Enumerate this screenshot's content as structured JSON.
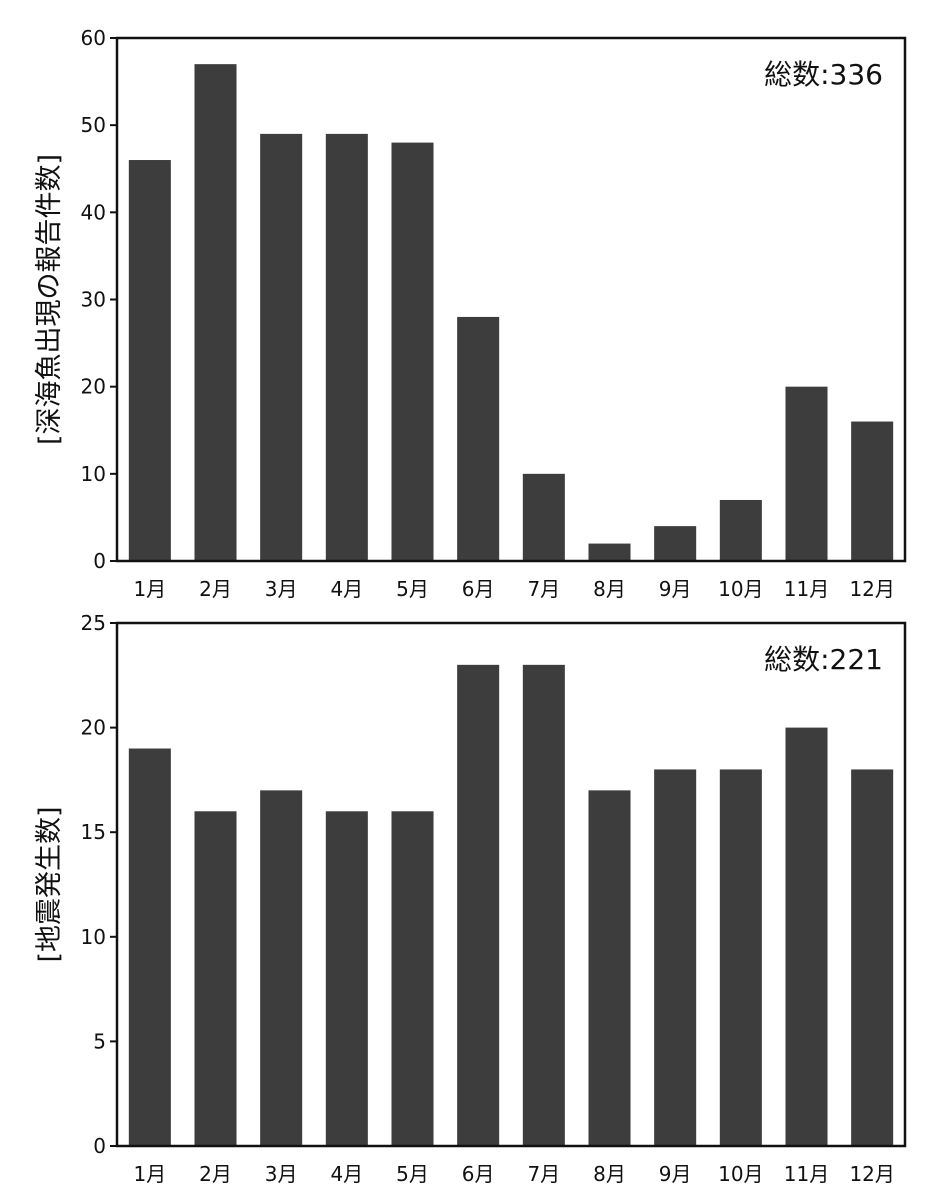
{
  "chart_data": [
    {
      "type": "bar",
      "categories": [
        "1月",
        "2月",
        "3月",
        "4月",
        "5月",
        "6月",
        "7月",
        "8月",
        "9月",
        "10月",
        "11月",
        "12月"
      ],
      "values": [
        46,
        57,
        49,
        49,
        48,
        28,
        10,
        2,
        4,
        7,
        20,
        16
      ],
      "ylabel": "[深海魚出現の報告件数]",
      "ylim": [
        0,
        60
      ],
      "yticks": [
        0,
        10,
        20,
        30,
        40,
        50,
        60
      ],
      "annotation": "総数:336",
      "bar_color": "#3d3d3d",
      "grid": false
    },
    {
      "type": "bar",
      "categories": [
        "1月",
        "2月",
        "3月",
        "4月",
        "5月",
        "6月",
        "7月",
        "8月",
        "9月",
        "10月",
        "11月",
        "12月"
      ],
      "values": [
        19,
        16,
        17,
        16,
        16,
        23,
        23,
        17,
        18,
        18,
        20,
        18
      ],
      "ylabel": "[地震発生数]",
      "ylim": [
        0,
        25
      ],
      "yticks": [
        0,
        5,
        10,
        15,
        20,
        25
      ],
      "annotation": "総数:221",
      "bar_color": "#3d3d3d",
      "grid": false
    }
  ]
}
